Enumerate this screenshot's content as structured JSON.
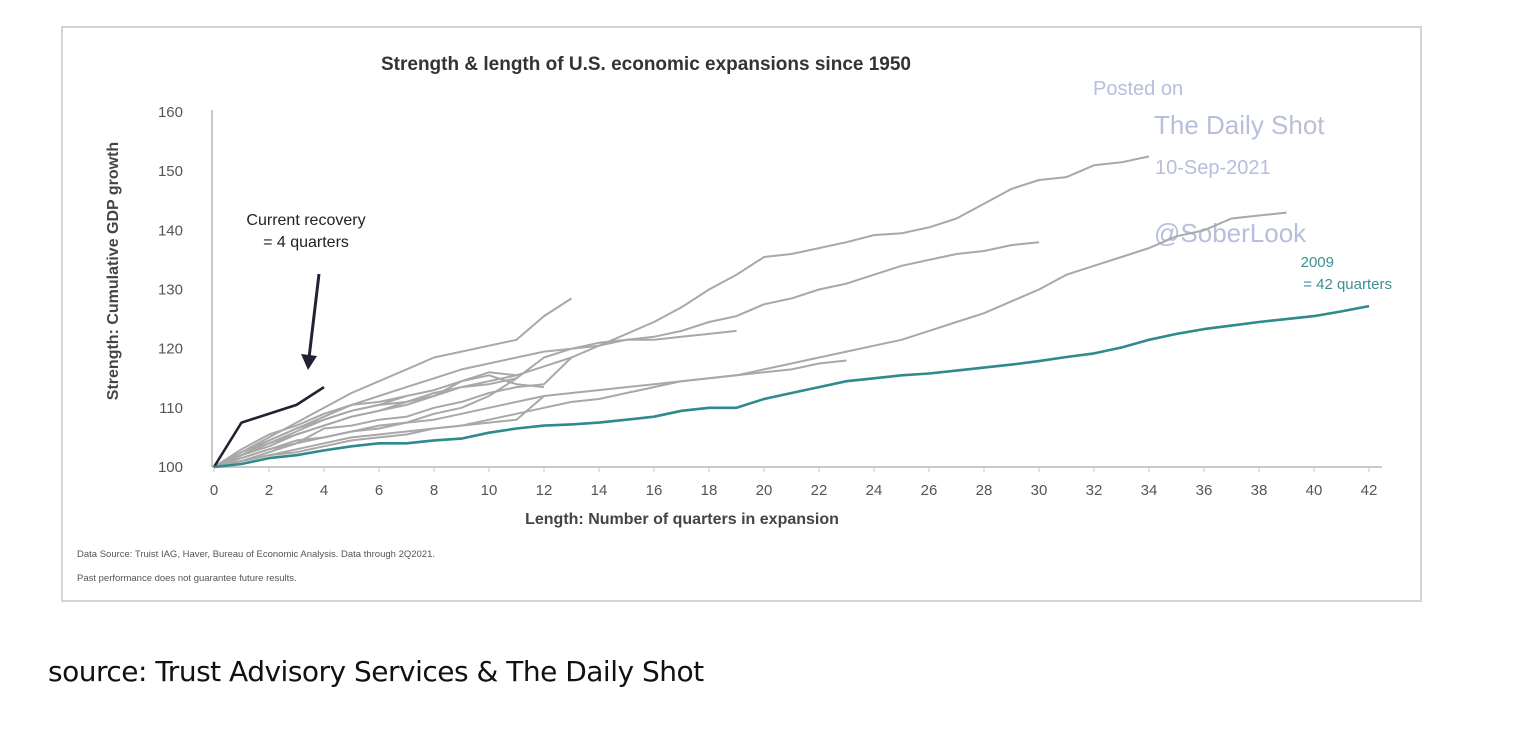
{
  "chart_data": {
    "type": "line",
    "title": "Strength & length of U.S. economic expansions since 1950",
    "xlabel": "Length: Number of quarters in expansion",
    "ylabel": "Strength: Cumulative GDP growth",
    "xlim": [
      0,
      42
    ],
    "ylim": [
      100,
      160
    ],
    "xticks": [
      "0",
      "2",
      "4",
      "6",
      "8",
      "10",
      "12",
      "14",
      "16",
      "18",
      "20",
      "22",
      "24",
      "26",
      "28",
      "30",
      "32",
      "34",
      "36",
      "38",
      "40",
      "42"
    ],
    "yticks": [
      "100",
      "110",
      "120",
      "130",
      "140",
      "150",
      "160"
    ],
    "grid": false,
    "series": [
      {
        "name": "Current recovery",
        "color": "#222233",
        "highlight": true,
        "x": [
          0,
          1,
          2,
          3,
          4
        ],
        "y": [
          100,
          107.5,
          109,
          110.5,
          113.5
        ]
      },
      {
        "name": "2009",
        "color": "#2e8a8c",
        "highlight": true,
        "x": [
          0,
          1,
          2,
          3,
          4,
          5,
          6,
          7,
          8,
          9,
          10,
          11,
          12,
          13,
          14,
          15,
          16,
          17,
          18,
          19,
          20,
          21,
          22,
          23,
          24,
          25,
          26,
          27,
          28,
          29,
          30,
          31,
          32,
          33,
          34,
          35,
          36,
          37,
          38,
          39,
          40,
          41,
          42
        ],
        "y": [
          100,
          100.5,
          101.5,
          102,
          102.8,
          103.5,
          104,
          104,
          104.5,
          104.8,
          105.8,
          106.5,
          107,
          107.2,
          107.5,
          108,
          108.5,
          109.5,
          110,
          110,
          111.5,
          112.5,
          113.5,
          114.5,
          115,
          115.5,
          115.8,
          116.3,
          116.8,
          117.3,
          117.9,
          118.6,
          119.2,
          120.2,
          121.5,
          122.5,
          123.3,
          123.9,
          124.5,
          125,
          125.5,
          126.3,
          127.2
        ]
      },
      {
        "color": "#a8a8a8",
        "x": [
          0,
          1,
          2,
          3,
          4,
          5,
          6,
          7,
          8,
          9,
          10,
          11,
          12,
          13,
          14,
          15,
          16,
          17,
          18,
          19,
          20,
          21,
          22,
          23,
          24,
          25,
          26,
          27,
          28,
          29,
          30,
          31,
          32,
          33,
          34
        ],
        "y": [
          100,
          102.5,
          104.5,
          106.5,
          108.5,
          110.5,
          112,
          113.5,
          115,
          116.5,
          117.5,
          118.5,
          119.5,
          120,
          120.5,
          122.5,
          124.5,
          127,
          130,
          132.5,
          135.5,
          136,
          137,
          138,
          139.2,
          139.5,
          140.5,
          142,
          144.5,
          147,
          148.5,
          149,
          151,
          151.5,
          152.5
        ]
      },
      {
        "color": "#a8a8a8",
        "x": [
          0,
          1,
          2,
          3,
          4,
          5,
          6,
          7,
          8,
          9,
          10,
          11,
          12,
          13,
          14,
          15,
          16,
          17,
          18,
          19,
          20,
          21,
          22,
          23,
          24,
          25,
          26,
          27,
          28,
          29,
          30
        ],
        "y": [
          100,
          102,
          104,
          105.5,
          107,
          108.5,
          109.5,
          110.5,
          112,
          113.5,
          114.5,
          115.5,
          117,
          118.5,
          120.5,
          121.5,
          122,
          123,
          124.5,
          125.5,
          127.5,
          128.5,
          130,
          131,
          132.5,
          134,
          135,
          136,
          136.5,
          137.5,
          138
        ]
      },
      {
        "color": "#a8a8a8",
        "x": [
          0,
          1,
          2,
          3,
          4,
          5,
          6,
          7,
          8,
          9,
          10,
          11,
          12,
          13,
          14,
          15,
          16,
          17,
          18,
          19,
          20,
          21,
          22,
          23,
          24,
          25,
          26,
          27,
          28,
          29,
          30,
          31,
          32,
          33,
          34,
          35,
          36,
          37,
          38,
          39
        ],
        "y": [
          100,
          101.5,
          103,
          104,
          105,
          106,
          107,
          107.5,
          108,
          109,
          110,
          111,
          112,
          112.5,
          113,
          113.5,
          114,
          114.5,
          115,
          115.5,
          116.5,
          117.5,
          118.5,
          119.5,
          120.5,
          121.5,
          123,
          124.5,
          126,
          128,
          130,
          132.5,
          134,
          135.5,
          137,
          139,
          140,
          142,
          142.5,
          143
        ]
      },
      {
        "color": "#a8a8a8",
        "x": [
          0,
          1,
          2,
          3,
          4,
          5,
          6,
          7,
          8,
          9,
          10,
          11,
          12,
          13,
          14,
          15,
          16,
          17,
          18,
          19,
          20,
          21,
          22,
          23
        ],
        "y": [
          100,
          101,
          102,
          102.5,
          103.5,
          104.5,
          105,
          105.5,
          106.5,
          107,
          108,
          109,
          110,
          111,
          111.5,
          112.5,
          113.5,
          114.5,
          115,
          115.5,
          116,
          116.5,
          117.5,
          118
        ]
      },
      {
        "color": "#a8a8a8",
        "x": [
          0,
          1,
          2,
          3,
          4,
          5,
          6,
          7,
          8,
          9,
          10,
          11,
          12,
          13,
          14,
          15,
          16,
          17,
          18,
          19
        ],
        "y": [
          100,
          102,
          103.5,
          105.5,
          107,
          108.5,
          109.5,
          111,
          112.5,
          113.5,
          114,
          115,
          118.5,
          120,
          121,
          121.5,
          121.5,
          122,
          122.5,
          123
        ]
      },
      {
        "color": "#a8a8a8",
        "x": [
          0,
          1,
          2,
          3,
          4,
          5,
          6,
          7,
          8,
          9,
          10,
          11,
          12,
          13
        ],
        "y": [
          100,
          102.5,
          105,
          107.5,
          110,
          112.5,
          114.5,
          116.5,
          118.5,
          119.5,
          120.5,
          121.5,
          125.5,
          128.5
        ]
      },
      {
        "color": "#a8a8a8",
        "x": [
          0,
          1,
          2,
          3,
          4,
          5,
          6,
          7,
          8,
          9,
          10,
          11,
          12
        ],
        "y": [
          100,
          102,
          104,
          106,
          108,
          109.5,
          110.5,
          112,
          113,
          114.5,
          115.5,
          114,
          113.5
        ]
      },
      {
        "color": "#a8a8a8",
        "x": [
          0,
          1,
          2,
          3,
          4,
          5,
          6,
          7,
          8,
          9,
          10,
          11,
          12,
          13
        ],
        "y": [
          100,
          101,
          102.5,
          104,
          106.5,
          107,
          108,
          108.5,
          110,
          111,
          112.5,
          113.5,
          114,
          118.5
        ]
      },
      {
        "color": "#a8a8a8",
        "x": [
          0,
          1,
          2,
          3,
          4,
          5,
          6,
          7,
          8,
          9,
          10,
          11
        ],
        "y": [
          100,
          102,
          104.5,
          106.5,
          108,
          109.5,
          110.5,
          111,
          112,
          114.5,
          116,
          115.5
        ]
      },
      {
        "color": "#a8a8a8",
        "x": [
          0,
          1,
          2,
          3,
          4,
          5,
          6,
          7
        ],
        "y": [
          100,
          103,
          105.5,
          107,
          109,
          110.5,
          111,
          112
        ]
      },
      {
        "color": "#a8a8a8",
        "x": [
          0,
          1,
          2,
          3,
          4,
          5,
          6,
          7,
          8,
          9,
          10,
          11
        ],
        "y": [
          100,
          101.5,
          103,
          104.5,
          105,
          106,
          106.5,
          107.5,
          109,
          110,
          112,
          115
        ]
      },
      {
        "color": "#a8a8a8",
        "x": [
          0,
          1,
          2,
          3,
          4,
          5,
          6,
          7,
          8,
          9,
          10,
          11,
          12
        ],
        "y": [
          100,
          101,
          102,
          103,
          104,
          105,
          105.5,
          106,
          106.5,
          107,
          107.5,
          108,
          112
        ]
      }
    ],
    "annotations": {
      "current_recovery": [
        "Current recovery",
        "= 4 quarters"
      ],
      "label_2009": [
        "2009",
        "= 42 quarters"
      ]
    },
    "watermark": [
      "Posted on",
      "The Daily Shot",
      "10-Sep-2021",
      "@SoberLook"
    ],
    "footnotes": [
      "Data Source: Truist IAG, Haver, Bureau of Economic Analysis. Data through 2Q2021.",
      "Past performance does not guarantee future results."
    ]
  },
  "caption": "source: Trust Advisory Services & The Daily Shot"
}
